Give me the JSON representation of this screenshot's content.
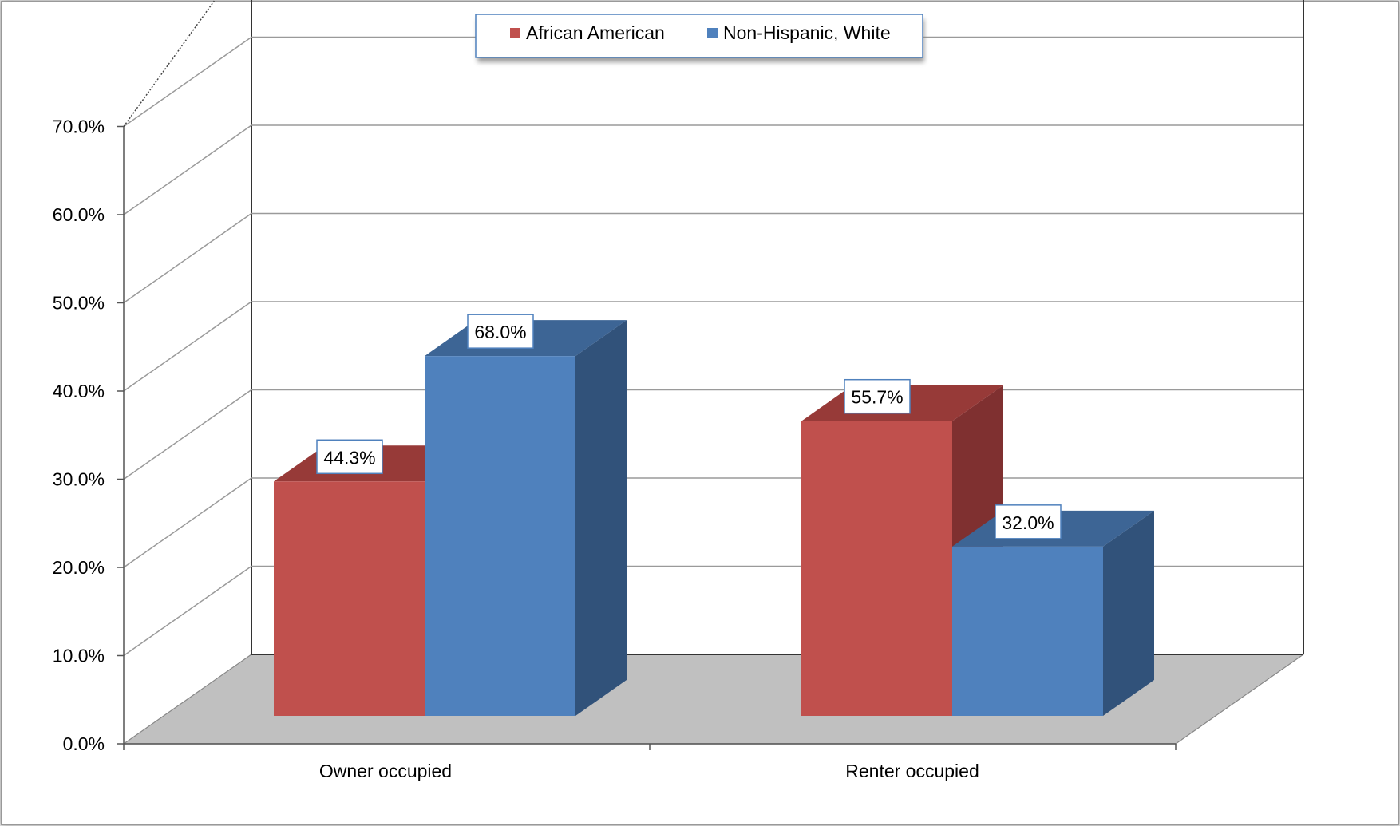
{
  "chart_data": {
    "type": "bar",
    "categories": [
      "Owner occupied",
      "Renter occupied"
    ],
    "series": [
      {
        "name": "African American",
        "values": [
          44.3,
          55.7
        ],
        "color": "#C0504D",
        "side_color": "#7F3030",
        "top_color": "#973A38"
      },
      {
        "name": "Non-Hispanic, White",
        "values": [
          68.0,
          32.0
        ],
        "color": "#4F81BD",
        "side_color": "#31527A",
        "top_color": "#3D6595"
      }
    ],
    "data_labels": [
      [
        "44.3%",
        "55.7%"
      ],
      [
        "68.0%",
        "32.0%"
      ]
    ],
    "y_ticks": [
      "0.0%",
      "10.0%",
      "20.0%",
      "30.0%",
      "40.0%",
      "50.0%",
      "60.0%",
      "70.0%"
    ],
    "ylim": [
      0,
      70
    ],
    "grid": true,
    "legend_position": "top-center",
    "title": "",
    "xlabel": "",
    "ylabel": ""
  }
}
